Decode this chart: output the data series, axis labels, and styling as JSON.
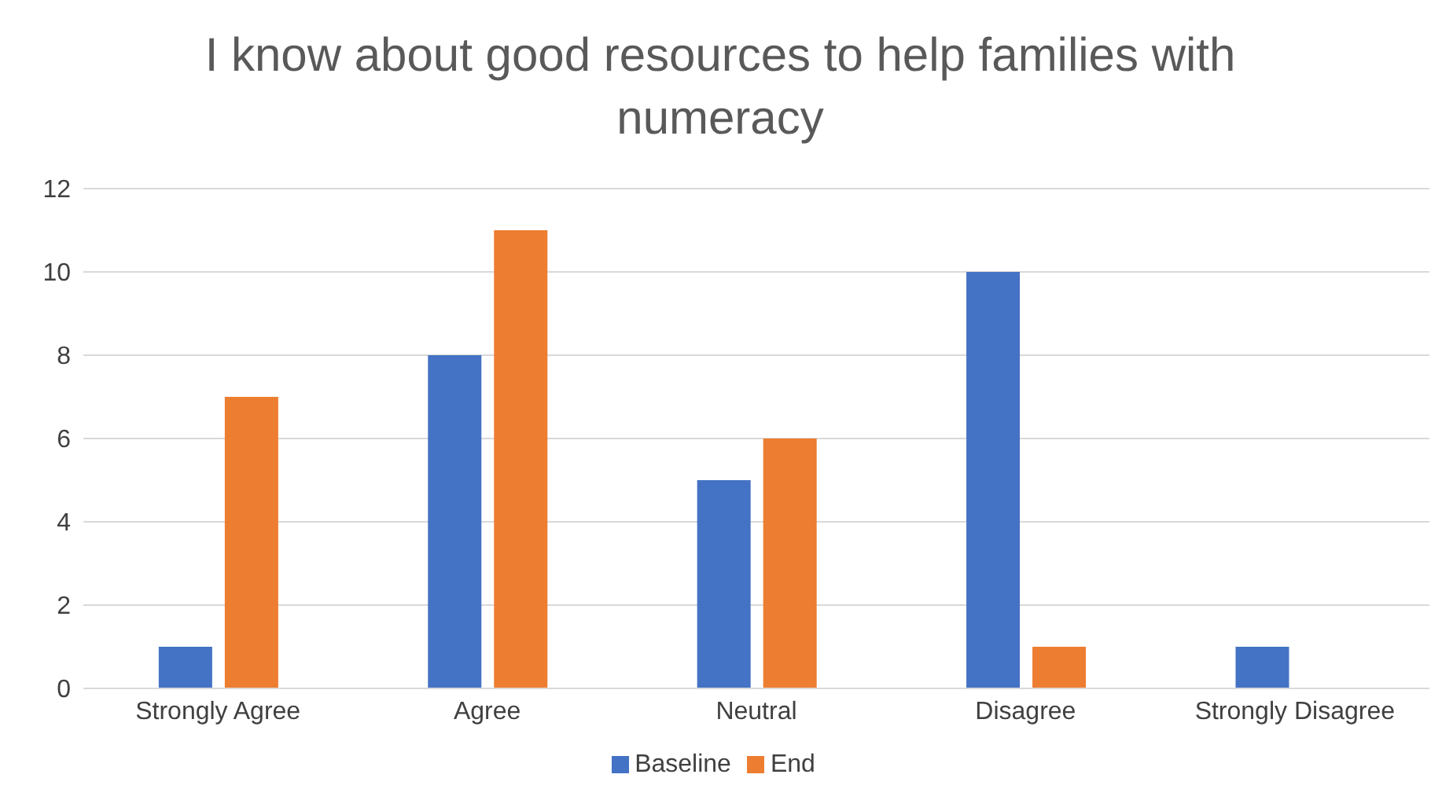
{
  "chart_data": {
    "type": "bar",
    "title": "I know about good resources to help families with numeracy",
    "categories": [
      "Strongly Agree",
      "Agree",
      "Neutral",
      "Disagree",
      "Strongly Disagree"
    ],
    "series": [
      {
        "name": "Baseline",
        "color": "#4472c4",
        "values": [
          1,
          8,
          5,
          10,
          1
        ]
      },
      {
        "name": "End",
        "color": "#ed7d31",
        "values": [
          7,
          11,
          6,
          1,
          0
        ]
      }
    ],
    "ylim": [
      0,
      12
    ],
    "yticks": [
      0,
      2,
      4,
      6,
      8,
      10,
      12
    ],
    "grid": "y",
    "legend": "bottom"
  }
}
